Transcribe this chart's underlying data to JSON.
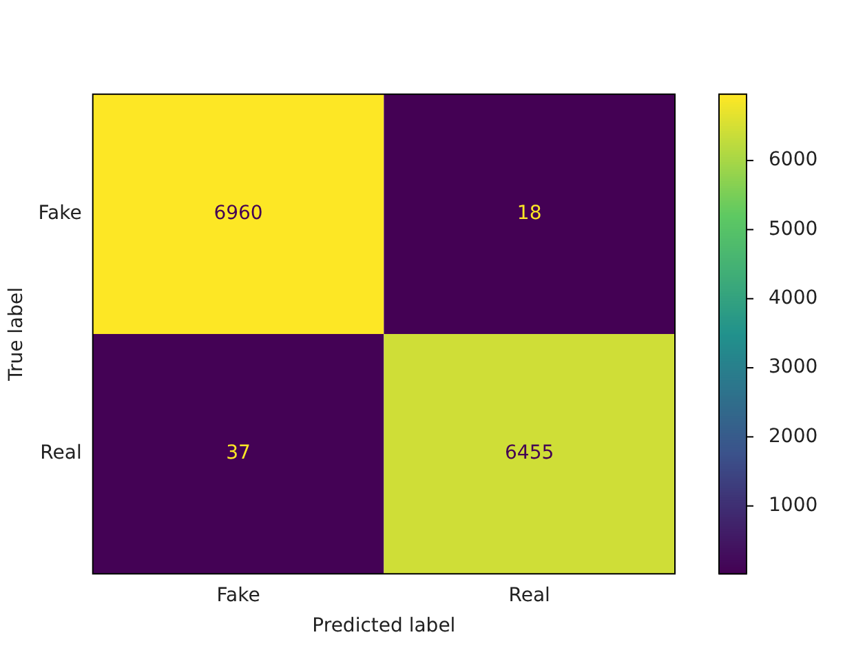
{
  "chart_data": {
    "type": "heatmap",
    "xlabel": "Predicted label",
    "ylabel": "True label",
    "categories": [
      "Fake",
      "Real"
    ],
    "y_categories": [
      "Fake",
      "Real"
    ],
    "cells": [
      [
        6960,
        18
      ],
      [
        37,
        6455
      ]
    ],
    "data_labels": true,
    "clim": [
      18,
      6960
    ],
    "cticks": [
      1000,
      2000,
      3000,
      4000,
      5000,
      6000
    ]
  }
}
